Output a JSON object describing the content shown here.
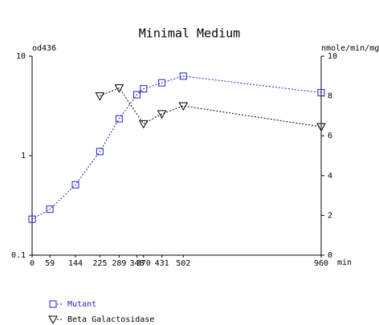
{
  "chart_data": {
    "type": "line",
    "title": "Minimal Medium",
    "y_label": "od436",
    "y2_label": "nmole/min/mg",
    "x_label": "min",
    "xlim": [
      0,
      960
    ],
    "xticks": [
      0,
      59,
      144,
      225,
      289,
      348,
      370,
      431,
      502,
      960
    ],
    "ylim": [
      0.1,
      10
    ],
    "yticks": [
      0.1,
      1,
      10
    ],
    "ylog": true,
    "y2lim": [
      0,
      10
    ],
    "y2ticks": [
      0,
      2,
      4,
      6,
      8,
      10
    ],
    "series": [
      {
        "name": "Mutant",
        "color": "#2222cc",
        "marker": "square",
        "x": [
          0,
          59,
          144,
          225,
          289,
          348,
          370,
          431,
          502,
          960
        ],
        "values": [
          0.23,
          0.29,
          0.51,
          1.1,
          2.35,
          4.1,
          4.7,
          5.4,
          6.3,
          4.3
        ]
      },
      {
        "name": "Beta Galactosidase",
        "color": "#000000",
        "marker": "triangle",
        "axis": "y2",
        "x": [
          225,
          289,
          370,
          431,
          502,
          960
        ],
        "values": [
          8.0,
          8.4,
          6.6,
          7.1,
          7.5,
          6.45
        ]
      }
    ]
  }
}
